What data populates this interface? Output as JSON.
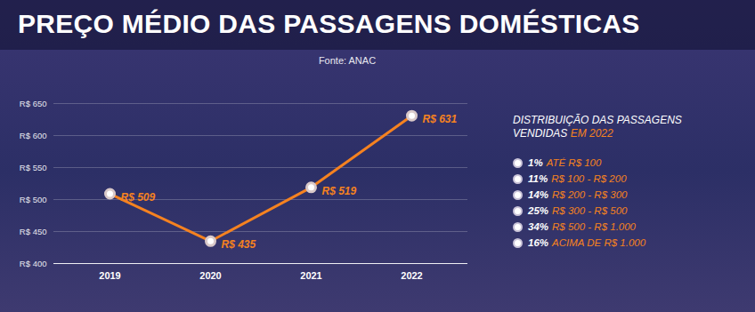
{
  "chart_data": [
    {
      "type": "line",
      "title": "PREÇO MÉDIO DAS PASSAGENS DOMÉSTICAS",
      "subtitle": "Fonte: ANAC",
      "categories": [
        "2019",
        "2020",
        "2021",
        "2022"
      ],
      "values": [
        509,
        435,
        519,
        631
      ],
      "value_labels": [
        "R$ 509",
        "R$ 435",
        "R$ 519",
        "R$ 631"
      ],
      "data_labels": true,
      "color": "#f58220",
      "marker": "circle",
      "ylim": [
        400,
        650
      ],
      "yticks": [
        {
          "value": 400,
          "label": "R$ 400"
        },
        {
          "value": 450,
          "label": "R$ 450"
        },
        {
          "value": 500,
          "label": "R$ 500"
        },
        {
          "value": 550,
          "label": "R$ 550"
        },
        {
          "value": 600,
          "label": "R$ 600"
        },
        {
          "value": 650,
          "label": "R$ 650"
        }
      ],
      "grid": true
    },
    {
      "type": "list",
      "title": "DISTRIBUIÇÃO DAS PASSAGENS VENDIDAS EM 2022",
      "categories": [
        "ATÉ R$ 100",
        "R$ 100 - R$ 200",
        "R$ 200 - R$ 300",
        "R$ 300 - R$ 500",
        "R$ 500 - R$ 1.000",
        "ACIMA DE R$ 1.000"
      ],
      "values": [
        1,
        11,
        14,
        25,
        34,
        16
      ],
      "value_labels": [
        "1%",
        "11%",
        "14%",
        "25%",
        "34%",
        "16%"
      ],
      "color": "#f58220"
    }
  ]
}
